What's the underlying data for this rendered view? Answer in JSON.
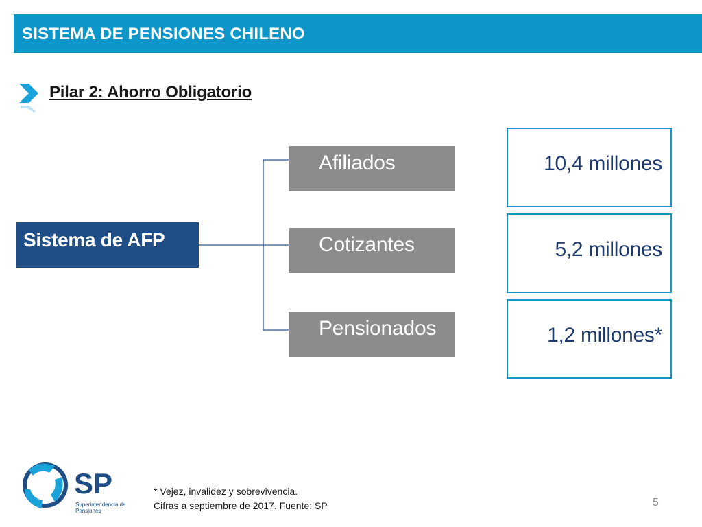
{
  "header": {
    "title": "SISTEMA DE PENSIONES CHILENO"
  },
  "section": {
    "heading": "Pilar 2: Ahorro Obligatorio"
  },
  "diagram": {
    "root": "Sistema de AFP",
    "branches": [
      {
        "label": "Afiliados",
        "value": "10,4 millones"
      },
      {
        "label": "Cotizantes",
        "value": "5,2 millones"
      },
      {
        "label": "Pensionados",
        "value": "1,2 millones*"
      }
    ]
  },
  "logo": {
    "text": "SP",
    "caption": "Superintendencia de Pensiones"
  },
  "footnotes": {
    "line1": "* Vejez, invalidez y sobrevivencia.",
    "line2": "Cifras a septiembre de 2017. Fuente: SP"
  },
  "page_number": "5",
  "colors": {
    "header": "#0d96c9",
    "root_box": "#1f4e86",
    "category_box": "#8c8c8c",
    "value_border": "#1296c9",
    "value_text": "#1f3b6e"
  }
}
